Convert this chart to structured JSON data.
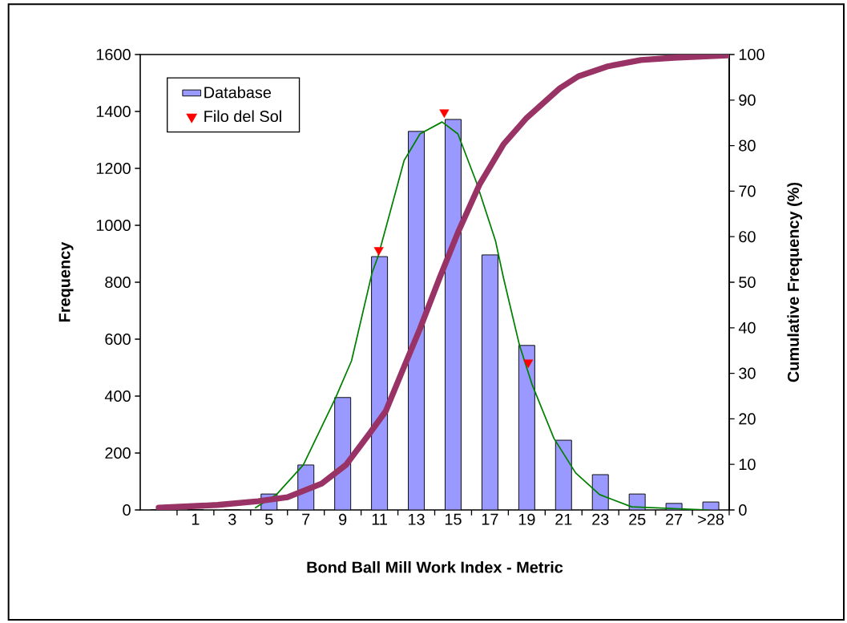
{
  "chart_data": {
    "type": "bar",
    "xlabel": "Bond Ball Mill Work Index - Metric",
    "ylabel": "Frequency",
    "y2label": "Cumulative Frequency (%)",
    "x": [
      -1,
      1,
      3,
      5,
      7,
      9,
      11,
      13,
      15,
      17,
      19,
      21,
      23,
      25,
      27,
      29
    ],
    "xlim": [
      -2,
      30
    ],
    "xticks": [
      {
        "value": 0,
        "label": null
      },
      {
        "value": 1,
        "label": "1"
      },
      {
        "value": 2,
        "label": null
      },
      {
        "value": 3,
        "label": "3"
      },
      {
        "value": 4,
        "label": null
      },
      {
        "value": 5,
        "label": "5"
      },
      {
        "value": 6,
        "label": null
      },
      {
        "value": 7,
        "label": "7"
      },
      {
        "value": 8,
        "label": null
      },
      {
        "value": 9,
        "label": "9"
      },
      {
        "value": 10,
        "label": null
      },
      {
        "value": 11,
        "label": "11"
      },
      {
        "value": 12,
        "label": null
      },
      {
        "value": 13,
        "label": "13"
      },
      {
        "value": 14,
        "label": null
      },
      {
        "value": 15,
        "label": "15"
      },
      {
        "value": 16,
        "label": null
      },
      {
        "value": 17,
        "label": "17"
      },
      {
        "value": 18,
        "label": null
      },
      {
        "value": 19,
        "label": "19"
      },
      {
        "value": 20,
        "label": null
      },
      {
        "value": 21,
        "label": "21"
      },
      {
        "value": 22,
        "label": null
      },
      {
        "value": 23,
        "label": "23"
      },
      {
        "value": 24,
        "label": null
      },
      {
        "value": 25,
        "label": "25"
      },
      {
        "value": 26,
        "label": null
      },
      {
        "value": 27,
        "label": "27"
      },
      {
        "value": 28,
        "label": null
      },
      {
        "value": 29,
        "label": ">28"
      },
      {
        "value": 30,
        "label": null
      }
    ],
    "series": [
      {
        "name": "Database",
        "color": "#9999ff",
        "values": [
          0,
          0,
          0,
          56,
          158,
          395,
          890,
          1330,
          1372,
          896,
          578,
          245,
          124,
          56,
          23,
          28
        ]
      },
      {
        "type": "line",
        "color": "#008000",
        "x": [
          4.26,
          5.4,
          6.86,
          8.6,
          9.48,
          10.6,
          10.92,
          12.34,
          13.2,
          14.4,
          15.26,
          16.26,
          17.3,
          17.74,
          18.6,
          19.3,
          20.48,
          21.66,
          22.96,
          24.7,
          28.86
        ],
        "values": [
          8,
          54,
          158,
          392,
          524,
          834,
          890,
          1228,
          1321,
          1363,
          1321,
          1152,
          946,
          814,
          580,
          439,
          251,
          130,
          54,
          11,
          0
        ]
      },
      {
        "type": "line",
        "axis": "y2",
        "color": "#993366",
        "x": [
          -1,
          2.2,
          4.4,
          6.0,
          7.86,
          9.18,
          10.48,
          11.34,
          12.34,
          13.2,
          14.26,
          15.26,
          16.44,
          17.74,
          19.0,
          20.8,
          21.8,
          23.4,
          25.2,
          27.0,
          29.92
        ],
        "values": [
          0.5,
          1.1,
          1.9,
          2.8,
          5.8,
          9.9,
          16.9,
          21.7,
          31.5,
          39.8,
          50.9,
          60.9,
          71.5,
          80.3,
          86.1,
          92.6,
          95.2,
          97.4,
          98.8,
          99.3,
          99.8
        ]
      },
      {
        "type": "scatter",
        "name": "Filo del Sol",
        "color": "#ff0000",
        "marker": "triangle",
        "x": [
          10.96,
          14.52,
          19.08
        ],
        "values": [
          913,
          1397,
          518
        ]
      }
    ],
    "ylim": [
      0,
      1600
    ],
    "yticks": [
      0,
      200,
      400,
      600,
      800,
      1000,
      1200,
      1400,
      1600
    ],
    "y2lim": [
      0,
      100
    ],
    "y2ticks": [
      0,
      10,
      20,
      30,
      40,
      50,
      60,
      70,
      80,
      90,
      100
    ],
    "legend": "top left",
    "grid": false
  }
}
